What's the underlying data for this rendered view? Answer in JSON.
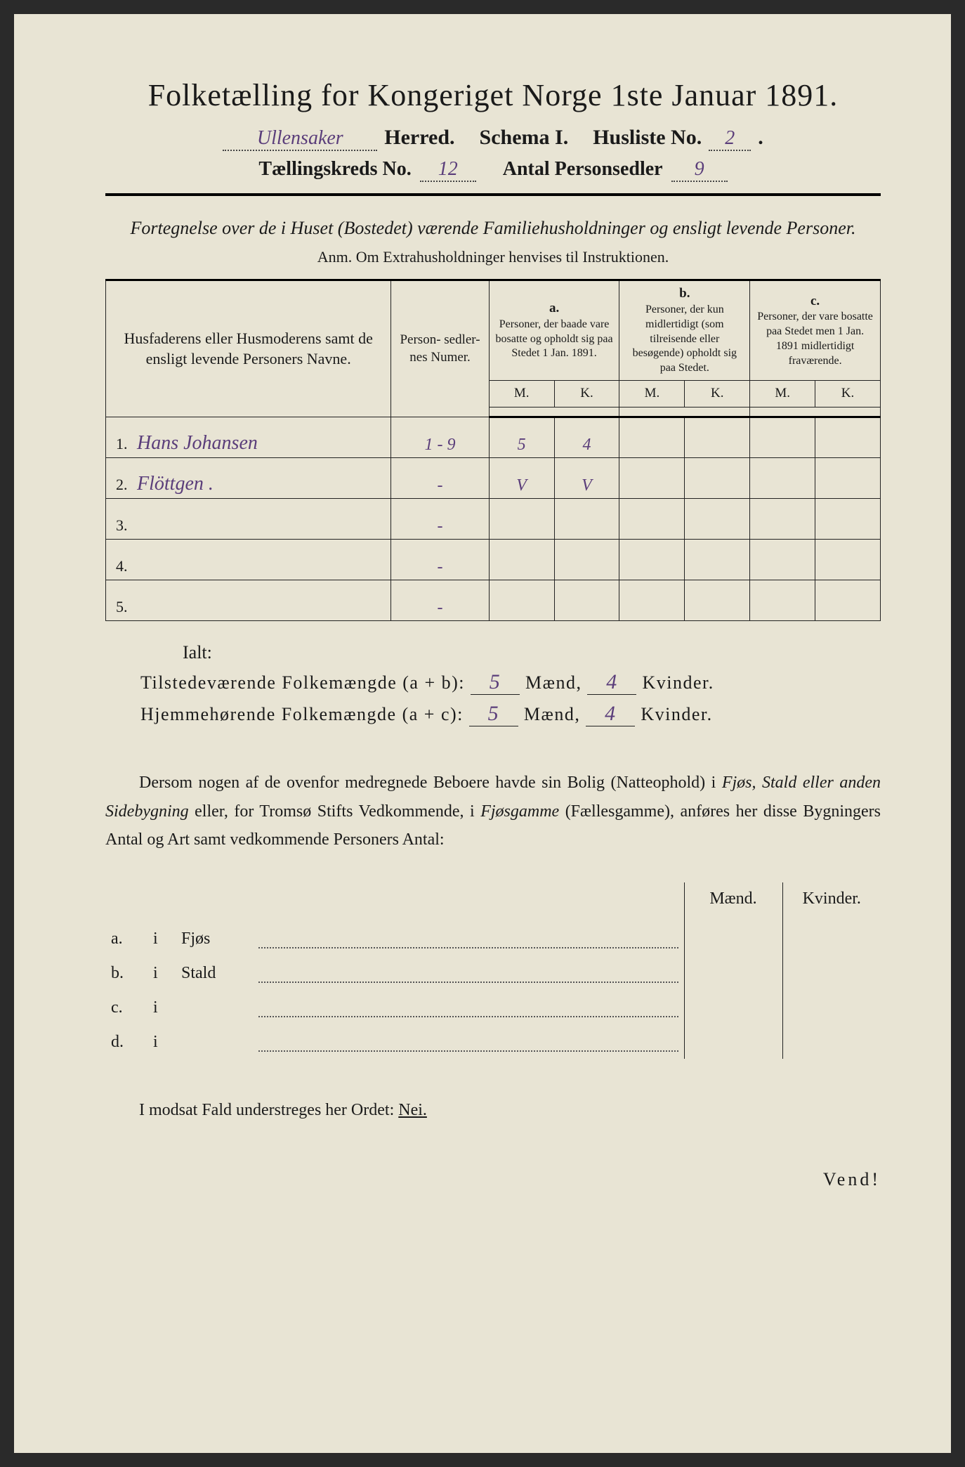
{
  "title": "Folketælling for Kongeriget Norge 1ste Januar 1891.",
  "header": {
    "herred_value": "Ullensaker",
    "herred_label": "Herred.",
    "schema_label": "Schema I.",
    "husliste_label": "Husliste No.",
    "husliste_value": "2",
    "kreds_label": "Tællingskreds No.",
    "kreds_value": "12",
    "sedler_label": "Antal Personsedler",
    "sedler_value": "9"
  },
  "description": "Fortegnelse over de i Huset (Bostedet) værende Familiehusholdninger og ensligt levende Personer.",
  "anm": "Anm.   Om Extrahusholdninger henvises til Instruktionen.",
  "table": {
    "head_name": "Husfaderens eller Husmoderens samt de ensligt levende Personers Navne.",
    "head_numer": "Person-\nsedler-\nnes\nNumer.",
    "col_a_label": "a.",
    "col_a": "Personer, der baade vare bosatte og opholdt sig paa Stedet 1 Jan. 1891.",
    "col_b_label": "b.",
    "col_b": "Personer, der kun midlertidigt (som tilreisende eller besøgende) opholdt sig paa Stedet.",
    "col_c_label": "c.",
    "col_c": "Personer, der vare bosatte paa Stedet men 1 Jan. 1891 midlertidigt fraværende.",
    "m_label": "M.",
    "k_label": "K.",
    "rows": [
      {
        "num": "1.",
        "name": "Hans Johansen",
        "numer": "1 - 9",
        "a_m": "5",
        "a_k": "4",
        "b_m": "",
        "b_k": "",
        "c_m": "",
        "c_k": ""
      },
      {
        "num": "2.",
        "name": "Flöttgen .",
        "numer": "-",
        "a_m": "V",
        "a_k": "V",
        "b_m": "",
        "b_k": "",
        "c_m": "",
        "c_k": ""
      },
      {
        "num": "3.",
        "name": "",
        "numer": "-",
        "a_m": "",
        "a_k": "",
        "b_m": "",
        "b_k": "",
        "c_m": "",
        "c_k": ""
      },
      {
        "num": "4.",
        "name": "",
        "numer": "-",
        "a_m": "",
        "a_k": "",
        "b_m": "",
        "b_k": "",
        "c_m": "",
        "c_k": ""
      },
      {
        "num": "5.",
        "name": "",
        "numer": "-",
        "a_m": "",
        "a_k": "",
        "b_m": "",
        "b_k": "",
        "c_m": "",
        "c_k": ""
      }
    ]
  },
  "ialt_label": "Ialt:",
  "totals": {
    "line1_label": "Tilstedeværende Folkemængde (a + b):",
    "line1_m": "5",
    "line1_k": "4",
    "line2_label": "Hjemmehørende Folkemængde (a + c):",
    "line2_m": "5",
    "line2_k": "4",
    "maend": "Mænd,",
    "kvinder": "Kvinder."
  },
  "para": "Dersom nogen af de ovenfor medregnede Beboere havde sin Bolig (Natteophold) i Fjøs, Stald eller anden Sidebygning eller, for Tromsø Stifts Vedkommende, i Fjøsgamme (Fællesgamme), anføres her disse Bygningers Antal og Art samt vedkommende Personers Antal:",
  "bottomtable": {
    "maend_head": "Mænd.",
    "kvinder_head": "Kvinder.",
    "rows": [
      {
        "letter": "a.",
        "i": "i",
        "type": "Fjøs"
      },
      {
        "letter": "b.",
        "i": "i",
        "type": "Stald"
      },
      {
        "letter": "c.",
        "i": "i",
        "type": ""
      },
      {
        "letter": "d.",
        "i": "i",
        "type": ""
      }
    ]
  },
  "nei_prefix": "I modsat Fald understreges her Ordet: ",
  "nei": "Nei.",
  "vend": "Vend!",
  "colors": {
    "paper": "#e8e4d4",
    "ink": "#1a1a1a",
    "handwriting": "#5a3d7a"
  }
}
